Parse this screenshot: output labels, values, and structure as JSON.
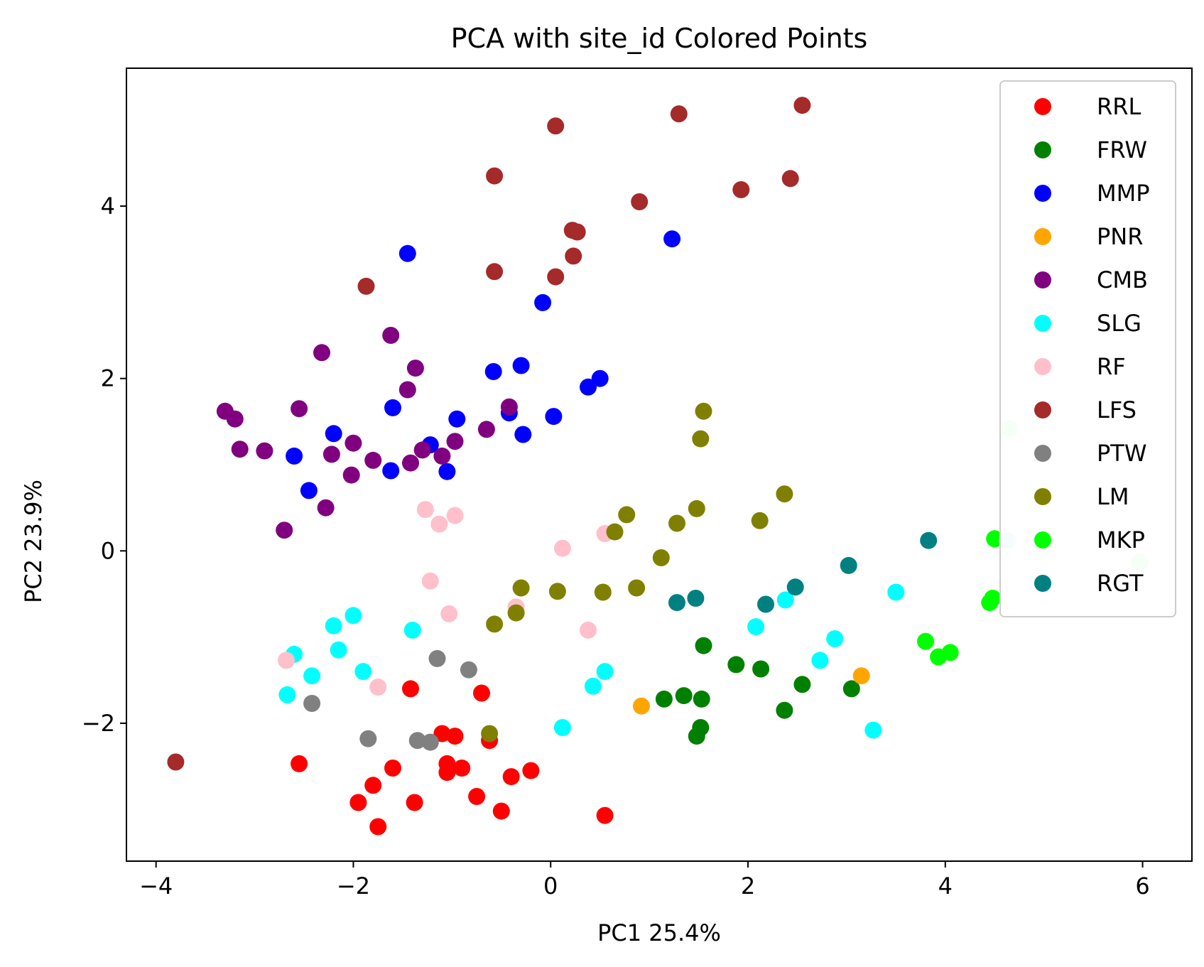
{
  "chart_data": {
    "type": "scatter",
    "title": "PCA with site_id Colored Points",
    "xlabel": "PC1 25.4%",
    "ylabel": "PC2 23.9%",
    "xlim": [
      -4.3,
      6.5
    ],
    "ylim": [
      -3.6,
      5.6
    ],
    "x_ticks": [
      -4,
      -2,
      0,
      2,
      4,
      6
    ],
    "y_ticks": [
      -2,
      0,
      2,
      4
    ],
    "x_tick_labels": [
      "−4",
      "−2",
      "0",
      "2",
      "4",
      "6"
    ],
    "y_tick_labels": [
      "−2",
      "0",
      "2",
      "4"
    ],
    "grid": false,
    "legend_position": "upper-right",
    "series": [
      {
        "name": "RRL",
        "color": "#ff0000",
        "points": [
          [
            -2.55,
            -2.47
          ],
          [
            -1.42,
            -1.6
          ],
          [
            -1.1,
            -2.12
          ],
          [
            -0.97,
            -2.15
          ],
          [
            -0.7,
            -1.65
          ],
          [
            -0.62,
            -2.2
          ],
          [
            -1.05,
            -2.47
          ],
          [
            -1.05,
            -2.57
          ],
          [
            -0.9,
            -2.52
          ],
          [
            -1.6,
            -2.52
          ],
          [
            -1.8,
            -2.72
          ],
          [
            -1.95,
            -2.92
          ],
          [
            -1.38,
            -2.92
          ],
          [
            -0.75,
            -2.85
          ],
          [
            -0.4,
            -2.62
          ],
          [
            -0.2,
            -2.55
          ],
          [
            -0.5,
            -3.02
          ],
          [
            -1.75,
            -3.2
          ],
          [
            0.55,
            -3.07
          ]
        ]
      },
      {
        "name": "FRW",
        "color": "#008000",
        "points": [
          [
            1.55,
            -1.1
          ],
          [
            1.88,
            -1.32
          ],
          [
            2.13,
            -1.37
          ],
          [
            2.55,
            -1.55
          ],
          [
            3.05,
            -1.6
          ],
          [
            1.15,
            -1.72
          ],
          [
            1.35,
            -1.68
          ],
          [
            1.53,
            -1.72
          ],
          [
            2.37,
            -1.85
          ],
          [
            1.52,
            -2.05
          ],
          [
            1.48,
            -2.15
          ]
        ]
      },
      {
        "name": "MMP",
        "color": "#0000ff",
        "points": [
          [
            -1.45,
            3.45
          ],
          [
            1.23,
            3.62
          ],
          [
            -0.08,
            2.88
          ],
          [
            -0.3,
            2.15
          ],
          [
            -0.58,
            2.08
          ],
          [
            0.5,
            2.0
          ],
          [
            0.38,
            1.9
          ],
          [
            -0.95,
            1.53
          ],
          [
            -0.42,
            1.6
          ],
          [
            0.03,
            1.56
          ],
          [
            -0.28,
            1.35
          ],
          [
            -1.6,
            1.66
          ],
          [
            -2.2,
            1.36
          ],
          [
            -1.22,
            1.23
          ],
          [
            -2.6,
            1.1
          ],
          [
            -1.05,
            0.92
          ],
          [
            -1.62,
            0.93
          ],
          [
            -2.45,
            0.7
          ]
        ]
      },
      {
        "name": "PNR",
        "color": "#ffa500",
        "points": [
          [
            3.15,
            -1.45
          ],
          [
            0.92,
            -1.8
          ]
        ]
      },
      {
        "name": "CMB",
        "color": "#800080",
        "points": [
          [
            -1.62,
            2.5
          ],
          [
            -2.32,
            2.3
          ],
          [
            -1.37,
            2.12
          ],
          [
            -1.45,
            1.87
          ],
          [
            -3.3,
            1.62
          ],
          [
            -3.2,
            1.53
          ],
          [
            -2.55,
            1.65
          ],
          [
            -0.42,
            1.67
          ],
          [
            -0.65,
            1.41
          ],
          [
            -3.15,
            1.18
          ],
          [
            -2.9,
            1.16
          ],
          [
            -2.0,
            1.25
          ],
          [
            -0.97,
            1.27
          ],
          [
            -1.3,
            1.17
          ],
          [
            -1.1,
            1.1
          ],
          [
            -2.22,
            1.12
          ],
          [
            -1.8,
            1.05
          ],
          [
            -1.42,
            1.02
          ],
          [
            -2.02,
            0.88
          ],
          [
            -2.28,
            0.5
          ],
          [
            -2.7,
            0.24
          ]
        ]
      },
      {
        "name": "SLG",
        "color": "#00ffff",
        "points": [
          [
            -2.0,
            -0.75
          ],
          [
            -2.2,
            -0.87
          ],
          [
            -1.4,
            -0.92
          ],
          [
            -2.15,
            -1.15
          ],
          [
            -2.6,
            -1.2
          ],
          [
            -1.9,
            -1.4
          ],
          [
            -2.42,
            -1.45
          ],
          [
            -2.67,
            -1.67
          ],
          [
            0.55,
            -1.4
          ],
          [
            0.43,
            -1.57
          ],
          [
            0.12,
            -2.05
          ],
          [
            2.38,
            -0.57
          ],
          [
            2.08,
            -0.88
          ],
          [
            2.88,
            -1.02
          ],
          [
            2.73,
            -1.27
          ],
          [
            3.5,
            -0.48
          ],
          [
            3.27,
            -2.08
          ]
        ]
      },
      {
        "name": "RF",
        "color": "#ffc0cb",
        "points": [
          [
            -1.27,
            0.48
          ],
          [
            -0.97,
            0.41
          ],
          [
            -1.13,
            0.31
          ],
          [
            0.12,
            0.03
          ],
          [
            0.55,
            0.2
          ],
          [
            -1.22,
            -0.35
          ],
          [
            -0.35,
            -0.65
          ],
          [
            -1.03,
            -0.73
          ],
          [
            0.38,
            -0.92
          ],
          [
            -2.68,
            -1.27
          ],
          [
            -1.75,
            -1.58
          ]
        ]
      },
      {
        "name": "LFS",
        "color": "#a52a2a",
        "points": [
          [
            2.55,
            5.17
          ],
          [
            1.3,
            5.07
          ],
          [
            0.05,
            4.93
          ],
          [
            -0.57,
            4.35
          ],
          [
            2.43,
            4.32
          ],
          [
            1.93,
            4.19
          ],
          [
            0.9,
            4.05
          ],
          [
            0.22,
            3.72
          ],
          [
            0.27,
            3.7
          ],
          [
            0.23,
            3.42
          ],
          [
            -0.57,
            3.24
          ],
          [
            0.05,
            3.18
          ],
          [
            -1.87,
            3.07
          ],
          [
            -3.8,
            -2.45
          ]
        ]
      },
      {
        "name": "PTW",
        "color": "#808080",
        "points": [
          [
            -1.15,
            -1.25
          ],
          [
            -0.83,
            -1.38
          ],
          [
            -2.42,
            -1.77
          ],
          [
            -1.85,
            -2.18
          ],
          [
            -1.35,
            -2.2
          ],
          [
            -1.22,
            -2.22
          ]
        ]
      },
      {
        "name": "LM",
        "color": "#808000",
        "points": [
          [
            1.55,
            1.62
          ],
          [
            1.52,
            1.3
          ],
          [
            2.37,
            0.66
          ],
          [
            0.77,
            0.42
          ],
          [
            2.12,
            0.35
          ],
          [
            1.48,
            0.49
          ],
          [
            1.28,
            0.32
          ],
          [
            0.65,
            0.22
          ],
          [
            1.12,
            -0.08
          ],
          [
            -0.3,
            -0.43
          ],
          [
            0.07,
            -0.47
          ],
          [
            0.53,
            -0.48
          ],
          [
            0.87,
            -0.43
          ],
          [
            -0.35,
            -0.72
          ],
          [
            -0.57,
            -0.85
          ],
          [
            -0.62,
            -2.12
          ]
        ]
      },
      {
        "name": "MKP",
        "color": "#00ff00",
        "points": [
          [
            4.5,
            0.14
          ],
          [
            4.45,
            -0.6
          ],
          [
            4.48,
            -0.55
          ],
          [
            3.8,
            -1.05
          ],
          [
            3.93,
            -1.23
          ],
          [
            4.05,
            -1.18
          ]
        ]
      },
      {
        "name": "RGT",
        "color": "#008080",
        "points": [
          [
            3.83,
            0.12
          ],
          [
            3.02,
            -0.17
          ],
          [
            2.48,
            -0.42
          ],
          [
            1.28,
            -0.6
          ],
          [
            1.47,
            -0.55
          ],
          [
            2.18,
            -0.62
          ]
        ]
      },
      {
        "name": "",
        "color": "#ccffcc",
        "points": [
          [
            4.65,
            1.42
          ],
          [
            5.97,
            -0.13
          ]
        ]
      },
      {
        "name": "",
        "color": "#d3eaea",
        "points": [
          [
            4.63,
            0.12
          ]
        ]
      }
    ]
  }
}
